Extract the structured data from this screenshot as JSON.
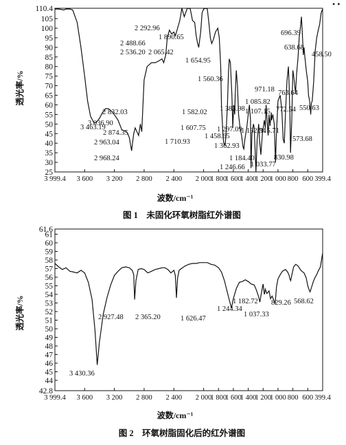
{
  "chart_data": [
    {
      "type": "line",
      "title": "图 1　未固化环氧树脂红外谱图",
      "xlabel": "波数/cm⁻¹",
      "ylabel": "透光率/%",
      "xlim": [
        3999.4,
        399.4
      ],
      "ylim": [
        25,
        110.4
      ],
      "x_ticks": [
        3999.4,
        3600,
        3200,
        2800,
        2400,
        2000,
        1600,
        1200,
        800,
        400
      ],
      "x_tick_labels": [
        "3 999.4",
        "3 600",
        "3 200",
        "2 800",
        "2 400",
        "2 000",
        "1 600",
        "1 200",
        "800",
        "399.4"
      ],
      "x_tick_values": [
        3999.4,
        3600,
        3200,
        2800,
        2400,
        2000,
        1600,
        1200,
        800,
        399.4
      ],
      "x_ticks_unlabeled": [
        1800,
        1400,
        1000,
        600
      ],
      "x_tick_labels_extra": [
        "1 800",
        "1 400",
        "1 000",
        "600"
      ],
      "y_ticks": [
        110.4,
        105,
        100,
        95,
        90,
        85,
        80,
        75,
        70,
        65,
        60,
        55,
        50,
        45,
        40,
        35,
        30,
        25
      ],
      "y_tick_labels": [
        "110.4",
        "105",
        "100",
        "95",
        "90",
        "85",
        "80",
        "75",
        "70",
        "65",
        "60",
        "55",
        "50",
        "45",
        "40",
        "35",
        "30",
        "25"
      ],
      "grid": false,
      "series": [
        {
          "x": [
            3999.4,
            3950,
            3880,
            3850,
            3800,
            3760,
            3700,
            3650,
            3600,
            3560,
            3520,
            3480,
            3463.19,
            3440,
            3400,
            3360,
            3320,
            3280,
            3250,
            3220,
            3150,
            3100,
            3036.9,
            3020,
            3000,
            2968.24,
            2963.04,
            2940,
            2920,
            2874.35,
            2850,
            2832.03,
            2800,
            2760,
            2700,
            2650,
            2600,
            2560,
            2536.2,
            2510,
            2488.66,
            2460,
            2430,
            2400,
            2380,
            2350,
            2320,
            2292.96,
            2260,
            2220,
            2180,
            2150,
            2120,
            2100,
            2080,
            2065.42,
            2040,
            2020,
            2000,
            1970,
            1950,
            1930,
            1910,
            1890.65,
            1870,
            1840,
            1810,
            1790,
            1770,
            1760,
            1740,
            1730,
            1710.93,
            1700,
            1680,
            1665,
            1654.95,
            1640,
            1620,
            1607.75,
            1595,
            1582.02,
            1575,
            1560.36,
            1545,
            1530,
            1510,
            1490,
            1470,
            1458.65,
            1445,
            1420,
            1400,
            1383.98,
            1370,
            1362.93,
            1350,
            1330,
            1320,
            1297.09,
            1280,
            1260,
            1246.66,
            1230,
            1210,
            1184.4,
            1170,
            1160,
            1132.34,
            1120,
            1107.15,
            1090,
            1085.82,
            1070,
            1050,
            1033.77,
            1020,
            1000,
            971.18,
            950,
            930,
            915.71,
            900,
            880,
            860,
            850,
            840,
            830.98,
            815,
            800,
            785,
            772.54,
            763.64,
            750,
            730,
            715,
            696.39,
            685,
            670,
            660,
            650,
            638.68,
            620,
            600,
            590,
            573.68,
            560,
            550.63,
            540,
            520,
            500,
            480,
            458.5,
            440,
            420,
            399.4
          ],
          "y": [
            110,
            110,
            109.5,
            110,
            110,
            109.5,
            103,
            90,
            75,
            62,
            54,
            51,
            50.5,
            51,
            53,
            56,
            58,
            58,
            57,
            56,
            52,
            47,
            46,
            45,
            43,
            36,
            38,
            45,
            48,
            44,
            50,
            46,
            73,
            80,
            82,
            82,
            83,
            84,
            82,
            86,
            95,
            99,
            97,
            98,
            96,
            100,
            104,
            110.4,
            106,
            110.4,
            110.2,
            104,
            103,
            96,
            92,
            90,
            98,
            108,
            110,
            110.4,
            110,
            103,
            95,
            92,
            94,
            98,
            100,
            95,
            80,
            60,
            44,
            40,
            39,
            44,
            60,
            78,
            84,
            82,
            65,
            48,
            60,
            55,
            65,
            78,
            70,
            55,
            48,
            44,
            38,
            37,
            42,
            48,
            55,
            60,
            52,
            27,
            45,
            50,
            48,
            25,
            42,
            50,
            41,
            34,
            45,
            52,
            48,
            60,
            44,
            55,
            49,
            56,
            52,
            55,
            50,
            30,
            46,
            62,
            65,
            58,
            42,
            40,
            55,
            72,
            80,
            70,
            55,
            35,
            52,
            78,
            74,
            69,
            66,
            76,
            85,
            95,
            101,
            106,
            95,
            86,
            90,
            85,
            78,
            72,
            65,
            62,
            55,
            61,
            62,
            72,
            88,
            95,
            99,
            102,
            108,
            110
          ]
        }
      ],
      "annotations": [
        "3 463.19",
        "3 036.90",
        "2 968.24",
        "2 963.04",
        "2 874.35",
        "2 832.03",
        "2 536.20",
        "2 488.66",
        "2 292.96",
        "2 065.42",
        "1 890.65",
        "1 710.93",
        "1 654.95",
        "1 607.75",
        "1 582.02",
        "1 560.36",
        "1 458.65",
        "1 383.98",
        "1 362.93",
        "1 297.09",
        "1 246.66",
        "1 184.40",
        "1 132.34",
        "1 107.15",
        "1 085.82",
        "1 033.77",
        "971.18",
        "915.71",
        "830.98",
        "772.54",
        "763.64",
        "696.39",
        "638.68",
        "573.68",
        "550.63",
        "458.50"
      ]
    },
    {
      "type": "line",
      "title": "图 2　环氧树脂固化后的红外谱图",
      "xlabel": "波数/cm⁻¹",
      "ylabel": "透光率/%",
      "xlim": [
        3999.4,
        399.4
      ],
      "ylim": [
        42.8,
        61.6
      ],
      "x_ticks": [
        3999.4,
        3600,
        3200,
        2800,
        2400,
        2000,
        1600,
        1200,
        800,
        400
      ],
      "x_tick_labels": [
        "3 999.4",
        "3 600",
        "3 200",
        "2 800",
        "2 400",
        "2 000",
        "1 600",
        "1 200",
        "800",
        "399.4"
      ],
      "x_tick_values": [
        3999.4,
        3600,
        3200,
        2800,
        2400,
        2000,
        1600,
        1200,
        800,
        399.4
      ],
      "x_ticks_unlabeled": [
        1800,
        1400,
        1000,
        600
      ],
      "x_tick_labels_extra": [
        "1 800",
        "1 400",
        "1 000",
        "600"
      ],
      "y_ticks": [
        61.6,
        61,
        60,
        59,
        58,
        57,
        56,
        55,
        54,
        53,
        52,
        51,
        50,
        49,
        48,
        47,
        46,
        45,
        44,
        42.8
      ],
      "y_tick_labels": [
        "61.6",
        "61",
        "60",
        "59",
        "58",
        "57",
        "56",
        "55",
        "54",
        "53",
        "52",
        "51",
        "50",
        "49",
        "48",
        "47",
        "46",
        "45",
        "44",
        "42.8"
      ],
      "grid": false,
      "series": [
        {
          "x": [
            3999.4,
            3950,
            3900,
            3850,
            3800,
            3750,
            3700,
            3650,
            3600,
            3550,
            3500,
            3460,
            3430.36,
            3400,
            3350,
            3300,
            3250,
            3200,
            3150,
            3100,
            3050,
            3000,
            2960,
            2940,
            2927.48,
            2910,
            2880,
            2840,
            2800,
            2750,
            2700,
            2650,
            2600,
            2560,
            2520,
            2480,
            2440,
            2400,
            2380,
            2365.2,
            2350,
            2330,
            2300,
            2250,
            2200,
            2150,
            2100,
            2050,
            2000,
            1950,
            1900,
            1850,
            1800,
            1760,
            1720,
            1680,
            1650,
            1626.47,
            1600,
            1560,
            1520,
            1480,
            1440,
            1400,
            1360,
            1320,
            1290,
            1260,
            1244.34,
            1230,
            1210,
            1200,
            1190,
            1182.72,
            1170,
            1150,
            1120,
            1100,
            1080,
            1050,
            1037.33,
            1020,
            1000,
            970,
            940,
            900,
            870,
            850,
            840,
            829.26,
            810,
            790,
            760,
            730,
            700,
            680,
            650,
            620,
            600,
            580,
            568.62,
            550,
            520,
            500,
            480,
            460,
            430,
            410,
            399.4
          ],
          "y": [
            57.6,
            57.2,
            56.9,
            57.1,
            56.7,
            56.6,
            56.5,
            56.8,
            56.5,
            55.4,
            53.4,
            49.8,
            45.8,
            48.5,
            51.7,
            53.6,
            55.1,
            56.2,
            56.7,
            57.1,
            57.2,
            57.1,
            56.8,
            56.3,
            53.4,
            55.6,
            56.9,
            57.0,
            56.9,
            56.5,
            56.7,
            56.9,
            57.0,
            57.1,
            57.1,
            56.9,
            56.5,
            56.8,
            56.2,
            53.6,
            55.9,
            56.8,
            57.0,
            57.3,
            57.5,
            57.6,
            57.6,
            57.7,
            57.7,
            57.7,
            57.5,
            57.4,
            57.1,
            56.6,
            55.6,
            54.2,
            53.2,
            52.4,
            53.5,
            54.7,
            55.4,
            55.5,
            55.7,
            55.5,
            55.2,
            55.1,
            54.5,
            53.7,
            53.1,
            53.8,
            54.8,
            55.2,
            54.4,
            54.0,
            54.6,
            54.1,
            54.4,
            53.5,
            53.8,
            53.2,
            53.0,
            54.9,
            55.8,
            56.3,
            56.7,
            56.9,
            56.6,
            56.2,
            55.8,
            55.6,
            56.4,
            57.2,
            57.5,
            57.3,
            56.9,
            56.7,
            56.5,
            55.9,
            55.0,
            54.5,
            54.3,
            54.8,
            55.6,
            56.0,
            56.3,
            56.7,
            57.2,
            58.3,
            58.8
          ]
        }
      ],
      "annotations": [
        "3 430.36",
        "2 927.48",
        "2 365.20",
        "1 626.47",
        "1 244.34",
        "1 182.72",
        "1 037.33",
        "829.26",
        "568.62"
      ]
    }
  ],
  "top_right_marks": "• •"
}
